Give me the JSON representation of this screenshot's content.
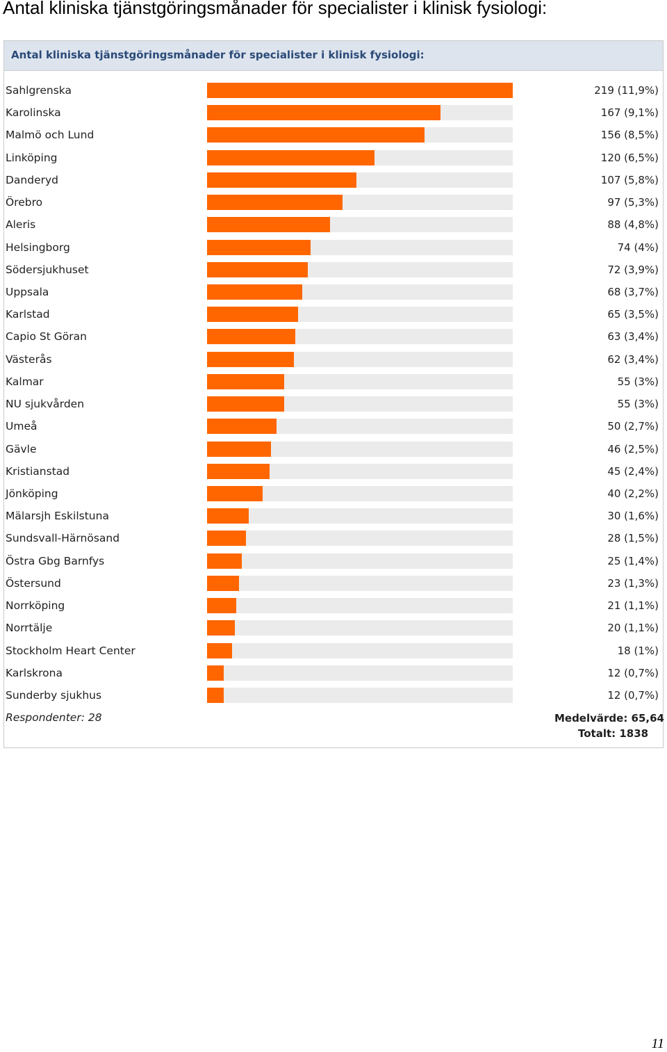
{
  "document": {
    "heading": "Antal kliniska tjänstgöringsmånader för specialister i klinisk fysiologi:",
    "page_number": "11"
  },
  "colors": {
    "bar": "#ff6600",
    "track": "#ebebeb",
    "header_bg": "#dde4ed",
    "header_text": "#2a4a78"
  },
  "chart_data": {
    "type": "bar",
    "orientation": "horizontal",
    "title": "Antal kliniska tjänstgöringsmånader för specialister i klinisk fysiologi:",
    "xmax": 219,
    "categories": [
      "Sahlgrenska",
      "Karolinska",
      "Malmö och Lund",
      "Linköping",
      "Danderyd",
      "Örebro",
      "Aleris",
      "Helsingborg",
      "Södersjukhuset",
      "Uppsala",
      "Karlstad",
      "Capio St Göran",
      "Västerås",
      "Kalmar",
      "NU sjukvården",
      "Umeå",
      "Gävle",
      "Kristianstad",
      "Jönköping",
      "Mälarsjh Eskilstuna",
      "Sundsvall-Härnösand",
      "Östra Gbg Barnfys",
      "Östersund",
      "Norrköping",
      "Norrtälje",
      "Stockholm Heart Center",
      "Karlskrona",
      "Sunderby sjukhus"
    ],
    "values": [
      219,
      167,
      156,
      120,
      107,
      97,
      88,
      74,
      72,
      68,
      65,
      63,
      62,
      55,
      55,
      50,
      46,
      45,
      40,
      30,
      28,
      25,
      23,
      21,
      20,
      18,
      12,
      12
    ],
    "value_labels": [
      "219 (11,9%)",
      "167 (9,1%)",
      "156 (8,5%)",
      "120 (6,5%)",
      "107 (5,8%)",
      "97 (5,3%)",
      "88 (4,8%)",
      "74 (4%)",
      "72 (3,9%)",
      "68 (3,7%)",
      "65 (3,5%)",
      "63 (3,4%)",
      "62 (3,4%)",
      "55 (3%)",
      "55 (3%)",
      "50 (2,7%)",
      "46 (2,5%)",
      "45 (2,4%)",
      "40 (2,2%)",
      "30 (1,6%)",
      "28 (1,5%)",
      "25 (1,4%)",
      "23 (1,3%)",
      "21 (1,1%)",
      "20 (1,1%)",
      "18 (1%)",
      "12 (0,7%)",
      "12 (0,7%)"
    ],
    "respondents": "Respondenter: 28",
    "mean": "Medelvärde: 65,64",
    "total": "Totalt: 1838"
  }
}
